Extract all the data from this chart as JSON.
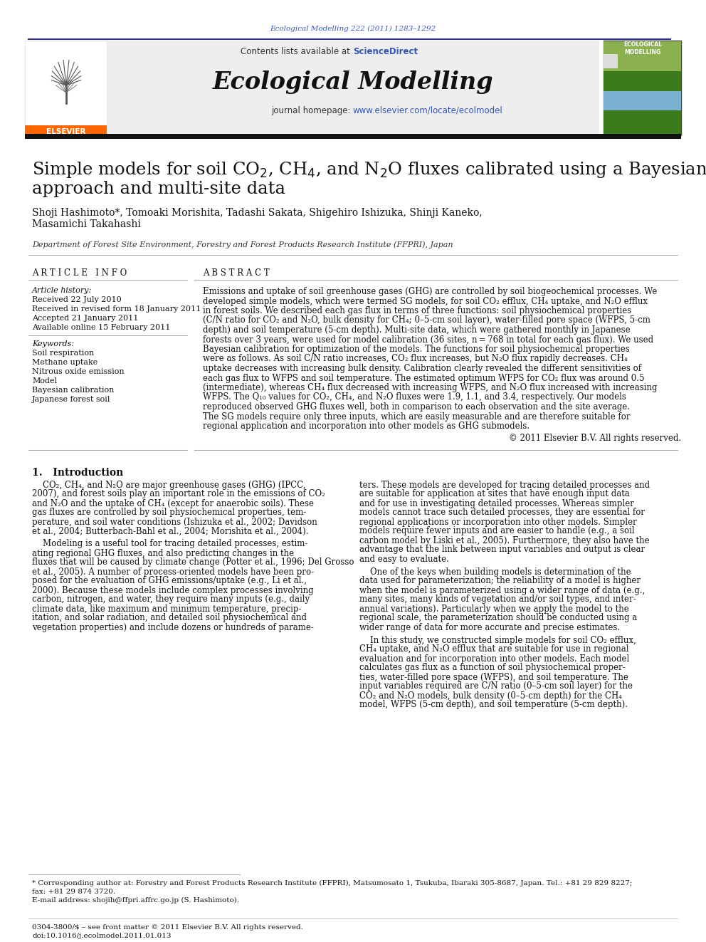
{
  "journal_ref": "Ecological Modelling 222 (2011) 1283–1292",
  "journal_ref_color": "#3355bb",
  "sciencedirect_color": "#3355bb",
  "journal_url_color": "#3355bb",
  "journal_name": "Ecological Modelling",
  "journal_url": "www.elsevier.com/locate/ecolmodel",
  "title_line1": "Simple models for soil CO$_2$, CH$_4$, and N$_2$O fluxes calibrated using a Bayesian",
  "title_line2": "approach and multi-site data",
  "authors_line1": "Shoji Hashimoto*, Tomoaki Morishita, Tadashi Sakata, Shigehiro Ishizuka, Shinji Kaneko,",
  "authors_line2": "Masamichi Takahashi",
  "affiliation": "Department of Forest Site Environment, Forestry and Forest Products Research Institute (FFPRI), Japan",
  "article_info_header": "A R T I C L E   I N F O",
  "abstract_header": "A B S T R A C T",
  "article_history_label": "Article history:",
  "received1": "Received 22 July 2010",
  "received2": "Received in revised form 18 January 2011",
  "accepted": "Accepted 21 January 2011",
  "available": "Available online 15 February 2011",
  "keywords_label": "Keywords:",
  "keywords": [
    "Soil respiration",
    "Methane uptake",
    "Nitrous oxide emission",
    "Model",
    "Bayesian calibration",
    "Japanese forest soil"
  ],
  "abstract_lines": [
    "Emissions and uptake of soil greenhouse gases (GHG) are controlled by soil biogeochemical processes. We",
    "developed simple models, which were termed SG models, for soil CO₂ efflux, CH₄ uptake, and N₂O efflux",
    "in forest soils. We described each gas flux in terms of three functions: soil physiochemical properties",
    "(C/N ratio for CO₂ and N₂O, bulk density for CH₄; 0–5-cm soil layer), water-filled pore space (WFPS, 5-cm",
    "depth) and soil temperature (5-cm depth). Multi-site data, which were gathered monthly in Japanese",
    "forests over 3 years, were used for model calibration (36 sites, n = 768 in total for each gas flux). We used",
    "Bayesian calibration for optimization of the models. The functions for soil physiochemical properties",
    "were as follows. As soil C/N ratio increases, CO₂ flux increases, but N₂O flux rapidly decreases. CH₄",
    "uptake decreases with increasing bulk density. Calibration clearly revealed the different sensitivities of",
    "each gas flux to WFPS and soil temperature. The estimated optimum WFPS for CO₂ flux was around 0.5",
    "(intermediate), whereas CH₄ flux decreased with increasing WFPS, and N₂O flux increased with increasing",
    "WFPS. The Q₁₀ values for CO₂, CH₄, and N₂O fluxes were 1.9, 1.1, and 3.4, respectively. Our models",
    "reproduced observed GHG fluxes well, both in comparison to each observation and the site average.",
    "The SG models require only three inputs, which are easily measurable and are therefore suitable for",
    "regional application and incorporation into other models as GHG submodels."
  ],
  "copyright": "© 2011 Elsevier B.V. All rights reserved.",
  "intro_header": "1.   Introduction",
  "intro_col1_lines": [
    "    CO₂, CH₄, and N₂O are major greenhouse gases (GHG) (IPCC,",
    "2007), and forest soils play an important role in the emissions of CO₂",
    "and N₂O and the uptake of CH₄ (except for anaerobic soils). These",
    "gas fluxes are controlled by soil physiochemical properties, tem-",
    "perature, and soil water conditions (Ishizuka et al., 2002; Davidson",
    "et al., 2004; Butterbach-Bahl et al., 2004; Morishita et al., 2004).",
    "",
    "    Modeling is a useful tool for tracing detailed processes, estim-",
    "ating regional GHG fluxes, and also predicting changes in the",
    "fluxes that will be caused by climate change (Potter et al., 1996; Del Grosso",
    "et al., 2005). A number of process-oriented models have been pro-",
    "posed for the evaluation of GHG emissions/uptake (e.g., Li et al.,",
    "2000). Because these models include complex processes involving",
    "carbon, nitrogen, and water, they require many inputs (e.g., daily",
    "climate data, like maximum and minimum temperature, precip-",
    "itation, and solar radiation, and detailed soil physiochemical and",
    "vegetation properties) and include dozens or hundreds of parame-"
  ],
  "intro_col2_lines": [
    "ters. These models are developed for tracing detailed processes and",
    "are suitable for application at sites that have enough input data",
    "and for use in investigating detailed processes. Whereas simpler",
    "models cannot trace such detailed processes, they are essential for",
    "regional applications or incorporation into other models. Simpler",
    "models require fewer inputs and are easier to handle (e.g., a soil",
    "carbon model by Liski et al., 2005). Furthermore, they also have the",
    "advantage that the link between input variables and output is clear",
    "and easy to evaluate.",
    "",
    "    One of the keys when building models is determination of the",
    "data used for parameterization; the reliability of a model is higher",
    "when the model is parameterized using a wider range of data (e.g.,",
    "many sites, many kinds of vegetation and/or soil types, and inter-",
    "annual variations). Particularly when we apply the model to the",
    "regional scale, the parameterization should be conducted using a",
    "wider range of data for more accurate and precise estimates.",
    "",
    "    In this study, we constructed simple models for soil CO₂ efflux,",
    "CH₄ uptake, and N₂O efflux that are suitable for use in regional",
    "evaluation and for incorporation into other models. Each model",
    "calculates gas flux as a function of soil physiochemical proper-",
    "ties, water-filled pore space (WFPS), and soil temperature. The",
    "input variables required are C/N ratio (0–5-cm soil layer) for the",
    "CO₂ and N₂O models, bulk density (0–5-cm depth) for the CH₄",
    "model, WFPS (5-cm depth), and soil temperature (5-cm depth)."
  ],
  "footnote1": "* Corresponding author at: Forestry and Forest Products Research Institute (FFPRI), Matsumosato 1, Tsukuba, Ibaraki 305-8687, Japan. Tel.: +81 29 829 8227;",
  "footnote1b": "fax: +81 29 874 3720.",
  "footnote2": "E-mail address: shojih@ffpri.affrc.go.jp (S. Hashimoto).",
  "footer1": "0304-3800/$ – see front matter © 2011 Elsevier B.V. All rights reserved.",
  "footer2": "doi:10.1016/j.ecolmodel.2011.01.013",
  "bg_color": "#ffffff",
  "header_bg_color": "#eeeeee",
  "text_color": "#000000",
  "dark_bar_color": "#111111",
  "elsevier_orange": "#FF6600",
  "header_line_color": "#333388",
  "rule_color": "#aaaaaa",
  "link_color": "#3355bb"
}
